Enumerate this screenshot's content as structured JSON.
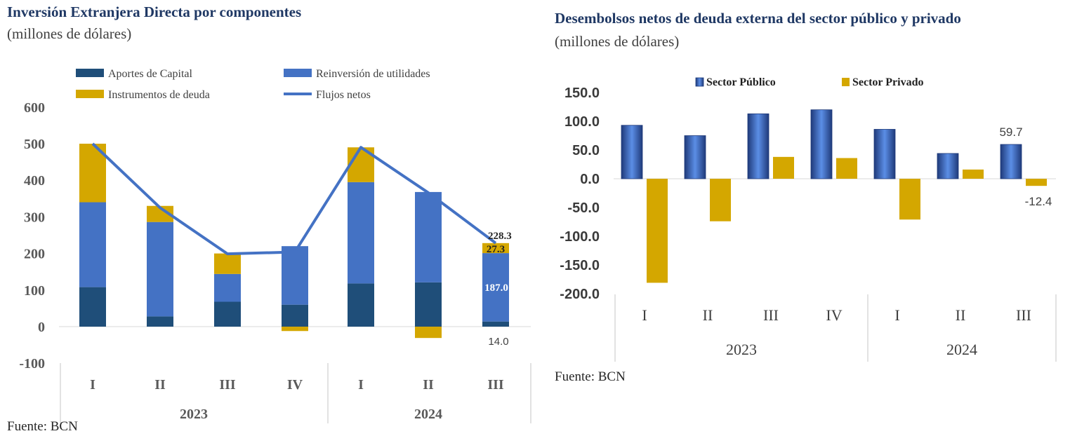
{
  "left": {
    "title": "Inversión Extranjera Directa por componentes",
    "subtitle": "(millones de dólares)",
    "source": "Fuente: BCN",
    "chart_data": {
      "type": "bar",
      "stacked": true,
      "categories": [
        "I",
        "II",
        "III",
        "IV",
        "I",
        "II",
        "III"
      ],
      "groups": [
        {
          "label": "2023",
          "span": 4
        },
        {
          "label": "2024",
          "span": 3
        }
      ],
      "series": [
        {
          "name": "Aportes de Capital",
          "values": [
            108,
            28,
            68,
            60,
            118,
            121,
            14.0
          ],
          "color": "#1f4e79"
        },
        {
          "name": "Reinversión de utilidades",
          "values": [
            232,
            258,
            76,
            160,
            277,
            247,
            187.0
          ],
          "color": "#4472c4"
        },
        {
          "name": "Instrumentos de deuda",
          "values": [
            160,
            44,
            56,
            -12,
            95,
            -31,
            27.3
          ],
          "color": "#d4a700"
        }
      ],
      "line": {
        "name": "Flujos netos",
        "values": [
          500,
          325,
          199,
          204,
          490,
          366,
          228.3
        ],
        "color": "#4472c4"
      },
      "ylim": [
        -100,
        600
      ],
      "yticks": [
        -100,
        0,
        100,
        200,
        300,
        400,
        500,
        600
      ],
      "data_labels": [
        {
          "text": "228.3",
          "series": "Flujos netos",
          "index": 6
        },
        {
          "text": "27.3",
          "series": "Instrumentos de deuda",
          "index": 6
        },
        {
          "text": "187.0",
          "series": "Reinversión de utilidades",
          "index": 6
        },
        {
          "text": "14.0",
          "series": "Aportes de Capital",
          "index": 6
        }
      ]
    }
  },
  "right": {
    "title": "Desembolsos netos de deuda externa del sector público y privado",
    "subtitle": "(millones de dólares)",
    "source": "Fuente: BCN",
    "chart_data": {
      "type": "bar",
      "categories": [
        "I",
        "II",
        "III",
        "IV",
        "I",
        "II",
        "III"
      ],
      "groups": [
        {
          "label": "2023",
          "span": 4
        },
        {
          "label": "2024",
          "span": 3
        }
      ],
      "series": [
        {
          "name": "Sector Público",
          "values": [
            93,
            75,
            113,
            120,
            86,
            44,
            59.7
          ],
          "color": "#2f5597"
        },
        {
          "name": "Sector Privado",
          "values": [
            -181,
            -74,
            38,
            36,
            -71,
            16,
            -12.4
          ],
          "color": "#d4a700"
        }
      ],
      "ylim": [
        -200,
        150
      ],
      "yticks": [
        "150.0",
        "100.0",
        "50.0",
        "0.0",
        "-50.0",
        "-100.0",
        "-150.0",
        "-200.0"
      ],
      "data_labels": [
        {
          "text": "59.7",
          "series": "Sector Público",
          "index": 6
        },
        {
          "text": "-12.4",
          "series": "Sector Privado",
          "index": 6
        }
      ]
    }
  }
}
